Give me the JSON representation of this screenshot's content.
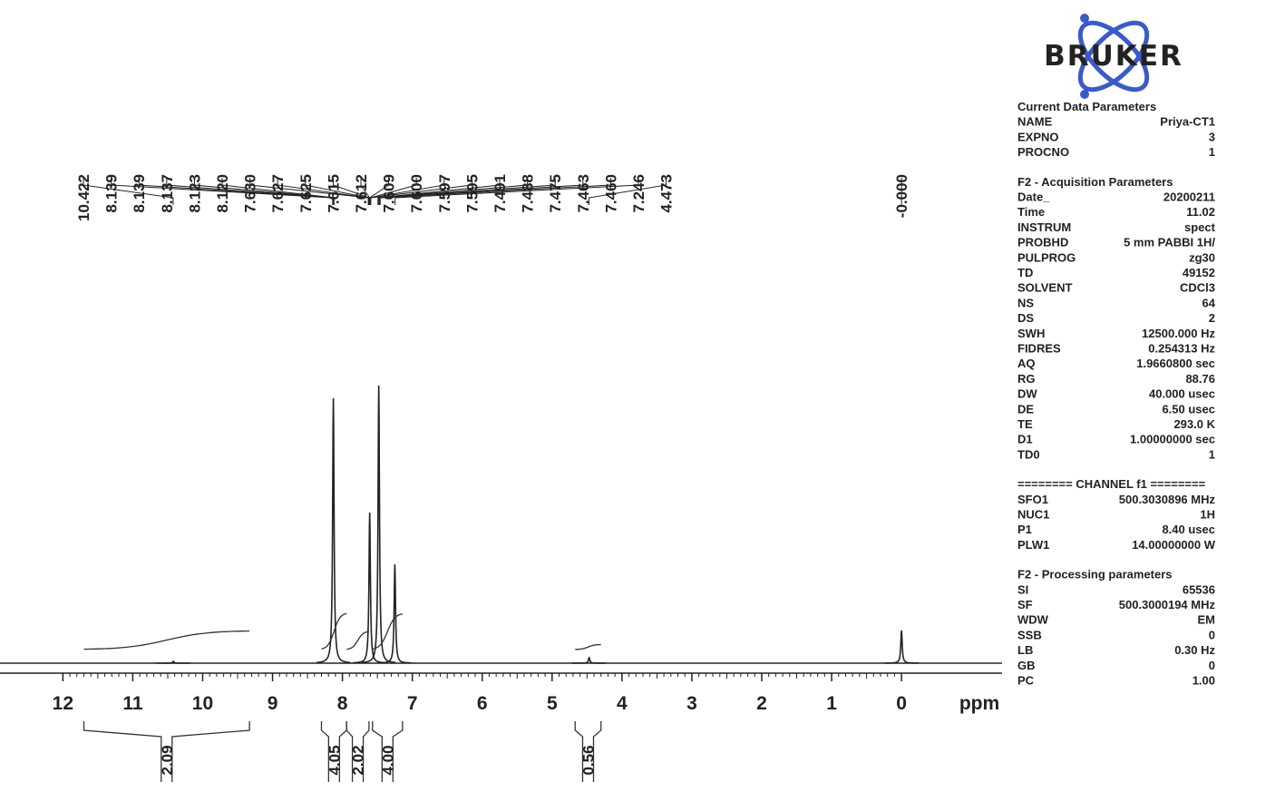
{
  "chart_data": {
    "type": "spectrum",
    "x_label": "ppm",
    "xlim": [
      12.9,
      -1.4
    ],
    "xticks": [
      12,
      11,
      10,
      9,
      8,
      7,
      6,
      5,
      4,
      3,
      2,
      1,
      0
    ],
    "ylim": [
      0,
      320
    ],
    "color": "#222222",
    "signals": [
      {
        "x": 10.42,
        "height": 2
      },
      {
        "x": 8.13,
        "height": 292
      },
      {
        "x": 7.61,
        "height": 166
      },
      {
        "x": 7.48,
        "height": 306
      },
      {
        "x": 7.25,
        "height": 109
      },
      {
        "x": 4.47,
        "height": 6
      },
      {
        "x": 0,
        "height": 36
      }
    ],
    "peaks": {
      "values": [
        10.422,
        8.139,
        8.139,
        8.137,
        8.123,
        8.12,
        7.63,
        7.627,
        7.625,
        7.615,
        7.612,
        7.609,
        7.6,
        7.597,
        7.595,
        7.491,
        7.488,
        7.475,
        7.463,
        7.46,
        7.246,
        4.473,
        0
      ],
      "value_labels": [
        "10.422",
        "8.139",
        "8.139",
        "8.137",
        "8.123",
        "8.120",
        "7.630",
        "7.627",
        "7.625",
        "7.615",
        "7.612",
        "7.609",
        "7.600",
        "7.597",
        "7.595",
        "7.491",
        "7.488",
        "7.475",
        "7.463",
        "7.460",
        "7.246",
        "4.473",
        "-0.000"
      ]
    },
    "integrals": {
      "ranges": [
        [
          11.7,
          9.33
        ],
        [
          8.3,
          7.94
        ],
        [
          7.94,
          7.62
        ],
        [
          7.57,
          7.14
        ],
        [
          4.67,
          4.3
        ]
      ],
      "values": [
        2.09,
        4.05,
        2.02,
        4,
        0.56
      ],
      "value_labels": [
        "2.09",
        "4.05",
        "2.02",
        "4.00",
        "0.56"
      ]
    }
  },
  "logo": "BRUKER",
  "parameters": [
    {
      "title": "Current Data Parameters",
      "rows": [
        [
          "NAME",
          "Priya-CT1"
        ],
        [
          "EXPNO",
          "3"
        ],
        [
          "PROCNO",
          "1"
        ]
      ]
    },
    {
      "title": "F2 - Acquisition Parameters",
      "rows": [
        [
          "Date_",
          "20200211"
        ],
        [
          "Time",
          "11.02"
        ],
        [
          "INSTRUM",
          "spect"
        ],
        [
          "PROBHD",
          "5 mm PABBI 1H/"
        ],
        [
          "PULPROG",
          "zg30"
        ],
        [
          "TD",
          "49152"
        ],
        [
          "SOLVENT",
          "CDCl3"
        ],
        [
          "NS",
          "64"
        ],
        [
          "DS",
          "2"
        ],
        [
          "SWH",
          "12500.000 Hz"
        ],
        [
          "FIDRES",
          "0.254313 Hz"
        ],
        [
          "AQ",
          "1.9660800 sec"
        ],
        [
          "RG",
          "88.76"
        ],
        [
          "DW",
          "40.000 usec"
        ],
        [
          "DE",
          "6.50 usec"
        ],
        [
          "TE",
          "293.0 K"
        ],
        [
          "D1",
          "1.00000000 sec"
        ],
        [
          "TD0",
          "1"
        ]
      ]
    },
    {
      "title": "======== CHANNEL f1 ========",
      "rows": [
        [
          "SFO1",
          "500.3030896 MHz"
        ],
        [
          "NUC1",
          "1H"
        ],
        [
          "P1",
          "8.40 usec"
        ],
        [
          "PLW1",
          "14.00000000 W"
        ]
      ]
    },
    {
      "title": "F2 - Processing parameters",
      "rows": [
        [
          "SI",
          "65536"
        ],
        [
          "SF",
          "500.3000194 MHz"
        ],
        [
          "WDW",
          "EM"
        ],
        [
          "SSB",
          "0"
        ],
        [
          "LB",
          "0.30 Hz"
        ],
        [
          "GB",
          "0"
        ],
        [
          "PC",
          "1.00"
        ]
      ]
    }
  ]
}
